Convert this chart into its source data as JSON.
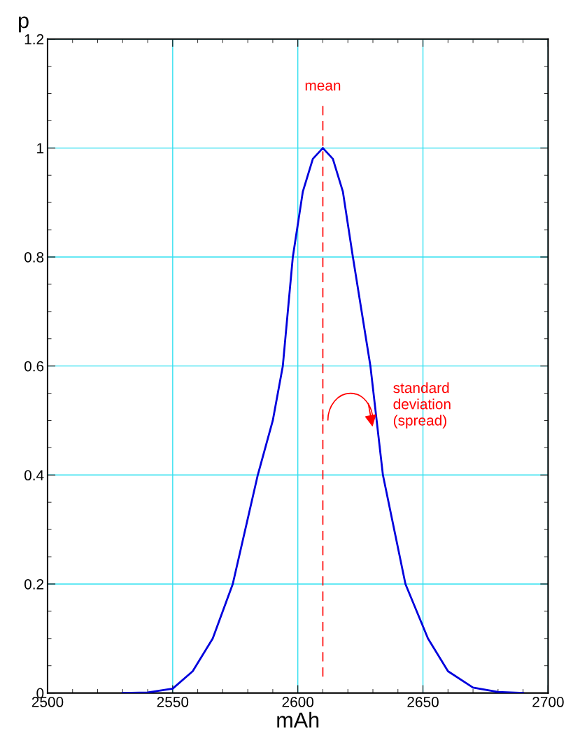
{
  "chart_data": {
    "type": "line",
    "xlabel": "mAh",
    "ylabel": "p",
    "x": [
      2530,
      2540,
      2550,
      2558,
      2566,
      2574,
      2584,
      2590,
      2594,
      2598,
      2602,
      2606,
      2610,
      2614,
      2618,
      2622,
      2629,
      2634,
      2643,
      2652,
      2660,
      2670,
      2680,
      2690
    ],
    "series": [
      {
        "color": "#0000dd",
        "values": [
          0,
          0.001,
          0.008,
          0.04,
          0.1,
          0.2,
          0.4,
          0.5,
          0.6,
          0.8,
          0.92,
          0.98,
          1,
          0.98,
          0.92,
          0.8,
          0.6,
          0.4,
          0.2,
          0.1,
          0.04,
          0.01,
          0.002,
          0
        ]
      }
    ],
    "xlim": [
      2500,
      2700
    ],
    "xticks": [
      2500,
      2550,
      2600,
      2650,
      2700
    ],
    "ylim": [
      0,
      1.2
    ],
    "yticks": [
      0,
      0.2,
      0.4,
      0.6,
      0.8,
      1,
      1.2
    ],
    "grid": true,
    "line_style": "solid",
    "marker": "none",
    "ref_lines": [
      {
        "axis": "x",
        "value": 2610,
        "label": "mean",
        "color": "#ff0000",
        "line_style": "dashed"
      }
    ],
    "annotations": [
      {
        "text": "standard\ndeviation\n(spread)",
        "x": 2632,
        "y": 0.5
      }
    ]
  }
}
